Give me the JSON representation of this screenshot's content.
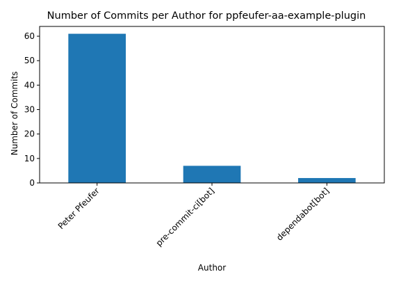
{
  "chart_data": {
    "type": "bar",
    "title": "Number of Commits per Author for ppfeufer-aa-example-plugin",
    "xlabel": "Author",
    "ylabel": "Number of Commits",
    "categories": [
      "Peter Pfeufer",
      "pre-commit-ci[bot]",
      "dependabot[bot]"
    ],
    "values": [
      61,
      7,
      2
    ],
    "ylim": [
      0,
      64
    ],
    "yticks": [
      0,
      10,
      20,
      30,
      40,
      50,
      60
    ],
    "bar_color": "#1f77b4",
    "grid": false,
    "legend": false
  }
}
